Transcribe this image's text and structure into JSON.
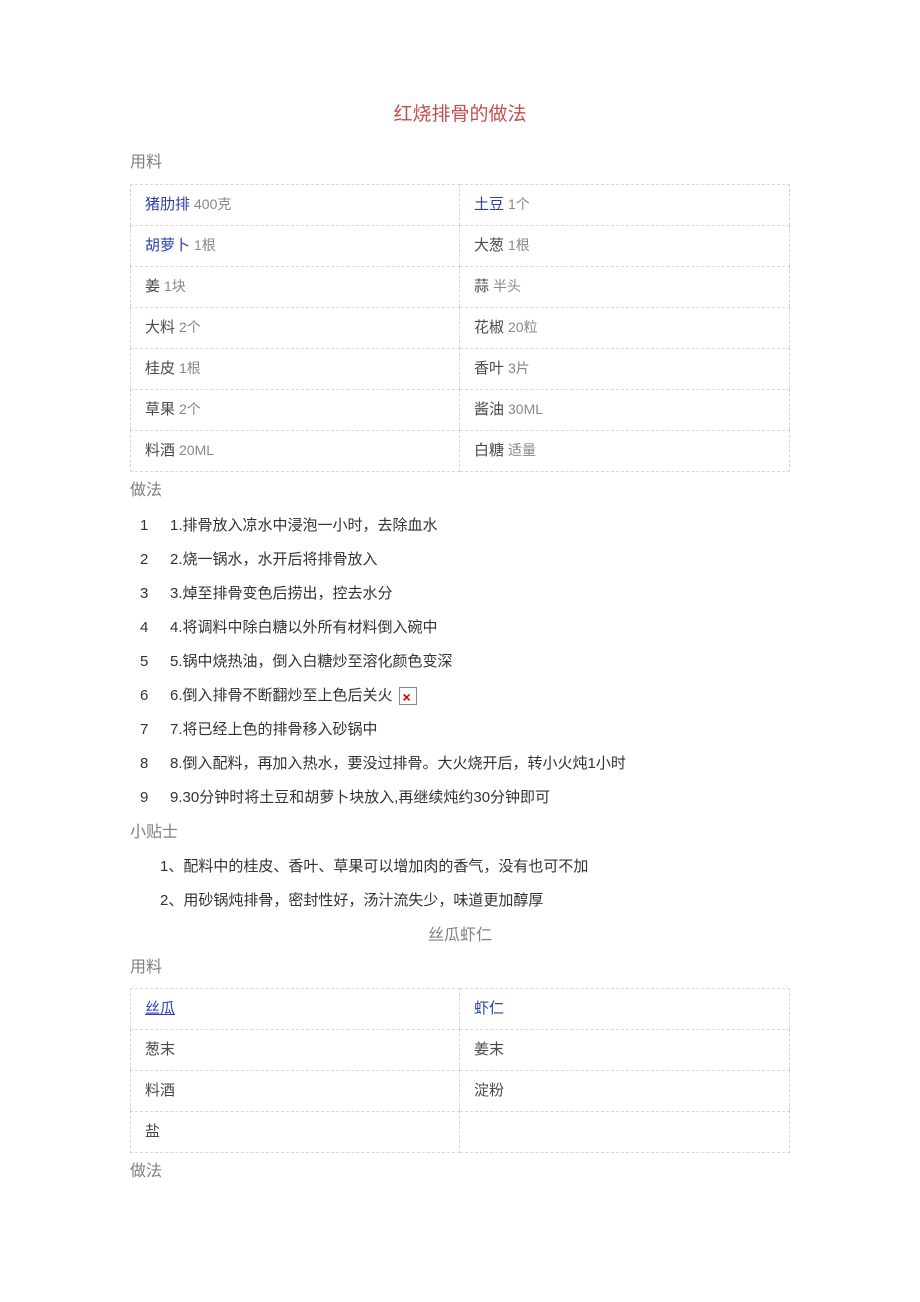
{
  "recipe1": {
    "title": "红烧排骨的做法",
    "sections": {
      "ingredients": "用料",
      "steps": "做法",
      "tips": "小贴士"
    },
    "ingredients": [
      {
        "name": "猪肋排",
        "qty": "400克",
        "link": true
      },
      {
        "name": "土豆",
        "qty": "1个",
        "link": true
      },
      {
        "name": "胡萝卜",
        "qty": "1根",
        "link": true
      },
      {
        "name": "大葱",
        "qty": "1根",
        "link": false
      },
      {
        "name": "姜",
        "qty": "1块",
        "link": false
      },
      {
        "name": "蒜",
        "qty": "半头",
        "link": false
      },
      {
        "name": "大料",
        "qty": "2个",
        "link": false
      },
      {
        "name": "花椒",
        "qty": "20粒",
        "link": false
      },
      {
        "name": "桂皮",
        "qty": "1根",
        "link": false
      },
      {
        "name": "香叶",
        "qty": "3片",
        "link": false
      },
      {
        "name": "草果",
        "qty": "2个",
        "link": false
      },
      {
        "name": "酱油",
        "qty": "30ML",
        "link": false
      },
      {
        "name": "料酒",
        "qty": "20ML",
        "link": false
      },
      {
        "name": "白糖",
        "qty": "适量",
        "link": false
      }
    ],
    "steps": [
      "1.排骨放入凉水中浸泡一小时，去除血水",
      "2.烧一锅水，水开后将排骨放入",
      "3.焯至排骨变色后捞出，控去水分",
      "4.将调料中除白糖以外所有材料倒入碗中",
      "5.锅中烧热油，倒入白糖炒至溶化颜色变深",
      "6.倒入排骨不断翻炒至上色后关火",
      "7.将已经上色的排骨移入砂锅中",
      "8.倒入配料，再加入热水，要没过排骨。大火烧开后，转小火炖1小时",
      "9.30分钟时将土豆和胡萝卜块放入,再继续炖约30分钟即可"
    ],
    "tips": [
      "1、配料中的桂皮、香叶、草果可以增加肉的香气，没有也可不加",
      "2、用砂锅炖排骨，密封性好，汤汁流失少，味道更加醇厚"
    ]
  },
  "recipe2": {
    "title": "丝瓜虾仁",
    "sections": {
      "ingredients": "用料",
      "steps": "做法"
    },
    "ingredients": [
      {
        "name": "丝瓜",
        "qty": "",
        "link": true
      },
      {
        "name": "虾仁",
        "qty": "",
        "link": true
      },
      {
        "name": "葱末",
        "qty": "",
        "link": false
      },
      {
        "name": "姜末",
        "qty": "",
        "link": false
      },
      {
        "name": "料酒",
        "qty": "",
        "link": false
      },
      {
        "name": "淀粉",
        "qty": "",
        "link": false
      },
      {
        "name": "盐",
        "qty": "",
        "link": false
      },
      {
        "name": "",
        "qty": "",
        "link": false
      }
    ]
  }
}
